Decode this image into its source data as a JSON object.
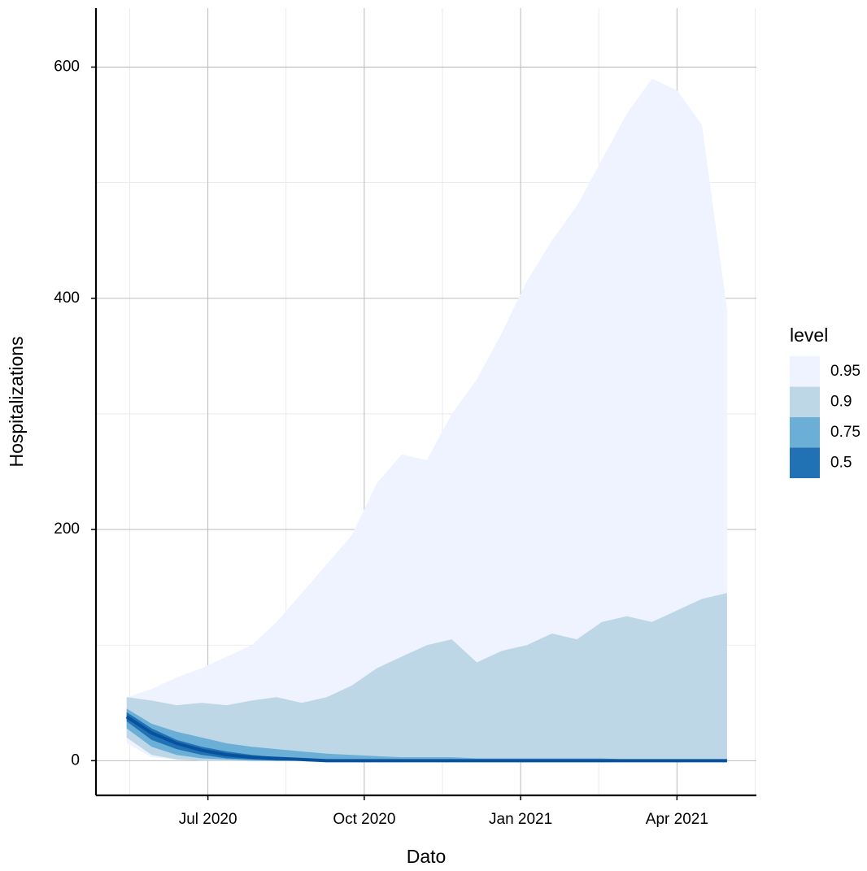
{
  "chart_data": {
    "type": "ribbon",
    "x_label": "Dato",
    "y_label": "Hospitalizations",
    "legend_title": "level",
    "legend_position": "right",
    "grid": true,
    "xlim": [
      2020.321,
      2021.377
    ],
    "ylim": [
      -30,
      651
    ],
    "xticks": [
      {
        "value": 2020.5,
        "label": "Jul 2020"
      },
      {
        "value": 2020.75,
        "label": "Oct 2020"
      },
      {
        "value": 2021.0,
        "label": "Jan 2021"
      },
      {
        "value": 2021.25,
        "label": "Apr 2021"
      }
    ],
    "minor_xticks": [
      2020.375,
      2020.625,
      2020.875,
      2021.125,
      2021.375
    ],
    "yticks": [
      0,
      200,
      400,
      600
    ],
    "minor_yticks": [
      100,
      300,
      500
    ],
    "x": [
      2020.37,
      2020.41,
      2020.45,
      2020.49,
      2020.53,
      2020.57,
      2020.61,
      2020.65,
      2020.69,
      2020.73,
      2020.77,
      2020.81,
      2020.85,
      2020.89,
      2020.93,
      2020.97,
      2021.01,
      2021.05,
      2021.09,
      2021.13,
      2021.17,
      2021.21,
      2021.25,
      2021.29,
      2021.33
    ],
    "series": [
      {
        "name": "0.95",
        "color": "#eff3ff",
        "upper": [
          55,
          62,
          72,
          80,
          90,
          100,
          120,
          145,
          170,
          195,
          240,
          265,
          260,
          300,
          330,
          370,
          415,
          450,
          480,
          520,
          560,
          590,
          580,
          550,
          390
        ],
        "lower": [
          15,
          3,
          1,
          0,
          0,
          0,
          0,
          0,
          0,
          0,
          0,
          0,
          0,
          0,
          0,
          0,
          0,
          0,
          0,
          0,
          0,
          0,
          0,
          0,
          0
        ]
      },
      {
        "name": "0.9",
        "color": "#bdd7e7",
        "upper": [
          55,
          52,
          48,
          50,
          48,
          52,
          55,
          50,
          55,
          65,
          80,
          90,
          100,
          105,
          85,
          95,
          100,
          110,
          105,
          120,
          125,
          120,
          130,
          140,
          145
        ],
        "lower": [
          20,
          5,
          1,
          0,
          0,
          0,
          0,
          0,
          0,
          0,
          0,
          0,
          0,
          0,
          0,
          0,
          0,
          0,
          0,
          0,
          0,
          0,
          0,
          0,
          0
        ]
      },
      {
        "name": "0.75",
        "color": "#6baed6",
        "upper": [
          45,
          32,
          25,
          20,
          15,
          12,
          10,
          8,
          6,
          5,
          4,
          3,
          3,
          3,
          2,
          2,
          2,
          2,
          2,
          2,
          1,
          1,
          1,
          1,
          1
        ],
        "lower": [
          28,
          12,
          5,
          2,
          1,
          0,
          0,
          0,
          0,
          0,
          0,
          0,
          0,
          0,
          0,
          0,
          0,
          0,
          0,
          0,
          0,
          0,
          0,
          0,
          0
        ]
      },
      {
        "name": "0.5",
        "color": "#2171b5",
        "upper": [
          42,
          28,
          18,
          12,
          8,
          5,
          3,
          2,
          1,
          1,
          0,
          0,
          0,
          0,
          0,
          0,
          0,
          0,
          0,
          0,
          0,
          0,
          0,
          0,
          0
        ],
        "lower": [
          34,
          18,
          10,
          5,
          2,
          1,
          0,
          0,
          0,
          0,
          0,
          0,
          0,
          0,
          0,
          0,
          0,
          0,
          0,
          0,
          0,
          0,
          0,
          0,
          0
        ]
      }
    ],
    "median_line": {
      "color": "#08519c",
      "values": [
        38,
        24,
        15,
        9,
        5,
        3,
        2,
        1,
        0,
        0,
        0,
        0,
        0,
        0,
        0,
        0,
        0,
        0,
        0,
        0,
        0,
        0,
        0,
        0,
        0
      ]
    }
  }
}
